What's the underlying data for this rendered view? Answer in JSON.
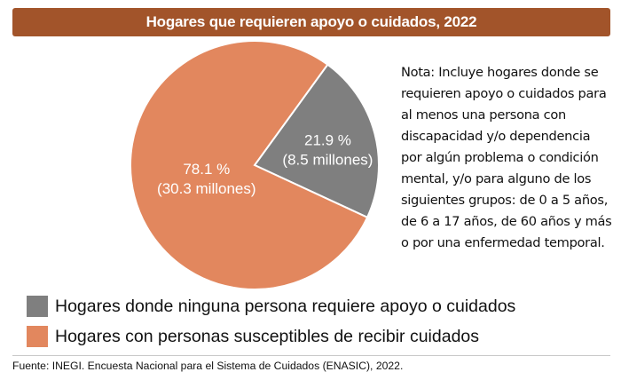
{
  "chart_data": {
    "type": "pie",
    "title": "Hogares que requieren apoyo o cuidados, 2022",
    "slices": [
      {
        "name": "Hogares donde ninguna persona requiere apoyo o cuidados",
        "value": 21.9,
        "label_pct": "21.9 %",
        "label_abs": "(8.5 millones)",
        "color": "#7f7f7f"
      },
      {
        "name": "Hogares con personas susceptibles de recibir cuidados",
        "value": 78.1,
        "label_pct": "78.1 %",
        "label_abs": "(30.3 millones)",
        "color": "#e2875e"
      }
    ]
  },
  "note": "Nota: Incluye hogares donde se requieren apoyo o cuidados para al menos una persona con discapacidad y/o dependencia por algún problema o condición mental, y/o para alguno de los siguientes grupos: de 0 a 5 años, de 6 a 17 años, de 60 años y más o por una enfermedad temporal.",
  "source": "Fuente: INEGI. Encuesta Nacional para el Sistema de Cuidados (ENASIC), 2022.",
  "colors": {
    "title_bg": "#a2542a",
    "gray": "#7f7f7f",
    "orange": "#e2875e"
  }
}
